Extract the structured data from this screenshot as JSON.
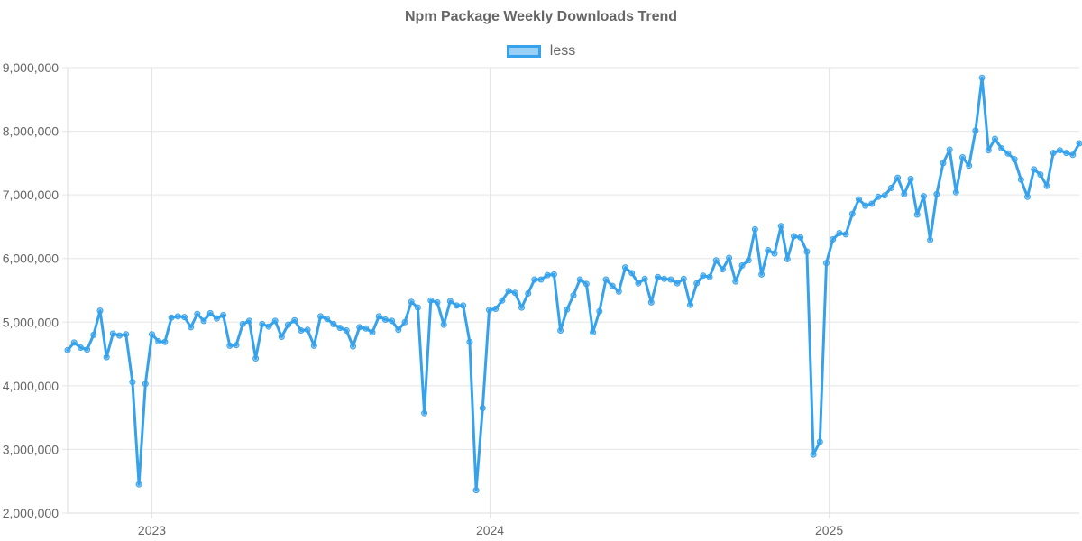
{
  "chart_data": {
    "type": "line",
    "title": "Npm Package Weekly Downloads Trend",
    "xlabel": "",
    "ylabel": "",
    "ylim": [
      2000000,
      9000000
    ],
    "xlim": [
      "2022-10-02",
      "2025-09-28"
    ],
    "y_ticks": [
      2000000,
      3000000,
      4000000,
      5000000,
      6000000,
      7000000,
      8000000,
      9000000
    ],
    "y_tick_labels": [
      "2,000,000",
      "3,000,000",
      "4,000,000",
      "5,000,000",
      "6,000,000",
      "7,000,000",
      "8,000,000",
      "9,000,000"
    ],
    "x_ticks": [
      "2023-01-01",
      "2024-01-01",
      "2025-01-01"
    ],
    "x_tick_labels": [
      "2023",
      "2024",
      "2025"
    ],
    "grid": true,
    "legend_position": "top-center",
    "colors": {
      "line": "#36a2eb",
      "fill": "rgba(54,162,235,0.5)",
      "grid": "#e5e5e5",
      "text": "#666666"
    },
    "series": [
      {
        "name": "less",
        "x_start": "2022-10-02",
        "x_step_days": 7,
        "values": [
          4560000,
          4680000,
          4600000,
          4570000,
          4800000,
          5180000,
          4450000,
          4820000,
          4790000,
          4810000,
          4060000,
          2450000,
          4030000,
          4810000,
          4700000,
          4690000,
          5070000,
          5090000,
          5080000,
          4920000,
          5130000,
          5020000,
          5140000,
          5060000,
          5110000,
          4630000,
          4640000,
          4970000,
          5020000,
          4430000,
          4970000,
          4930000,
          5020000,
          4770000,
          4960000,
          5030000,
          4870000,
          4880000,
          4630000,
          5090000,
          5050000,
          4970000,
          4910000,
          4870000,
          4620000,
          4920000,
          4900000,
          4840000,
          5090000,
          5040000,
          5020000,
          4880000,
          5000000,
          5320000,
          5230000,
          3570000,
          5340000,
          5310000,
          4960000,
          5330000,
          5260000,
          5260000,
          4690000,
          2360000,
          3650000,
          5190000,
          5210000,
          5340000,
          5490000,
          5460000,
          5230000,
          5450000,
          5670000,
          5670000,
          5740000,
          5750000,
          4870000,
          5200000,
          5420000,
          5670000,
          5600000,
          4840000,
          5170000,
          5670000,
          5570000,
          5480000,
          5860000,
          5770000,
          5610000,
          5680000,
          5310000,
          5710000,
          5680000,
          5670000,
          5610000,
          5680000,
          5270000,
          5610000,
          5730000,
          5710000,
          5970000,
          5830000,
          6010000,
          5640000,
          5890000,
          5970000,
          6460000,
          5750000,
          6130000,
          6080000,
          6510000,
          5990000,
          6350000,
          6330000,
          6110000,
          2920000,
          3120000,
          5930000,
          6300000,
          6400000,
          6380000,
          6700000,
          6930000,
          6830000,
          6860000,
          6970000,
          6990000,
          7110000,
          7270000,
          7010000,
          7250000,
          6690000,
          6980000,
          6290000,
          7010000,
          7500000,
          7710000,
          7040000,
          7590000,
          7460000,
          8010000,
          8840000,
          7700000,
          7880000,
          7730000,
          7650000,
          7560000,
          7240000,
          6970000,
          7400000,
          7320000,
          7140000,
          7660000,
          7700000,
          7660000,
          7630000,
          7810000
        ]
      }
    ]
  }
}
